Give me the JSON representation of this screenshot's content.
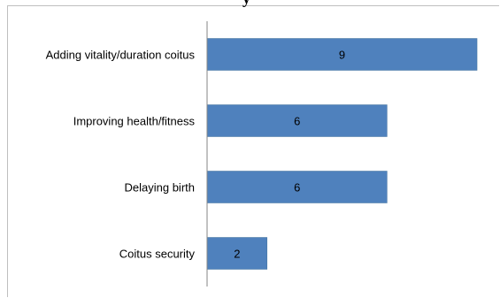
{
  "chart_data": {
    "type": "bar",
    "orientation": "horizontal",
    "title_fragment": "y",
    "categories": [
      "Adding vitality/duration coitus",
      "Improving health/fitness",
      "Delaying birth",
      "Coitus security"
    ],
    "values": [
      9,
      6,
      6,
      2
    ],
    "data_labels": [
      "9",
      "6",
      "6",
      "2"
    ],
    "xlim": [
      0,
      9.5
    ],
    "grid": false,
    "legend": "none",
    "bar_color": "#4f81bd",
    "bar_edge_color": "#41719c",
    "axis_color": "#868686",
    "label_color": "#000000"
  }
}
